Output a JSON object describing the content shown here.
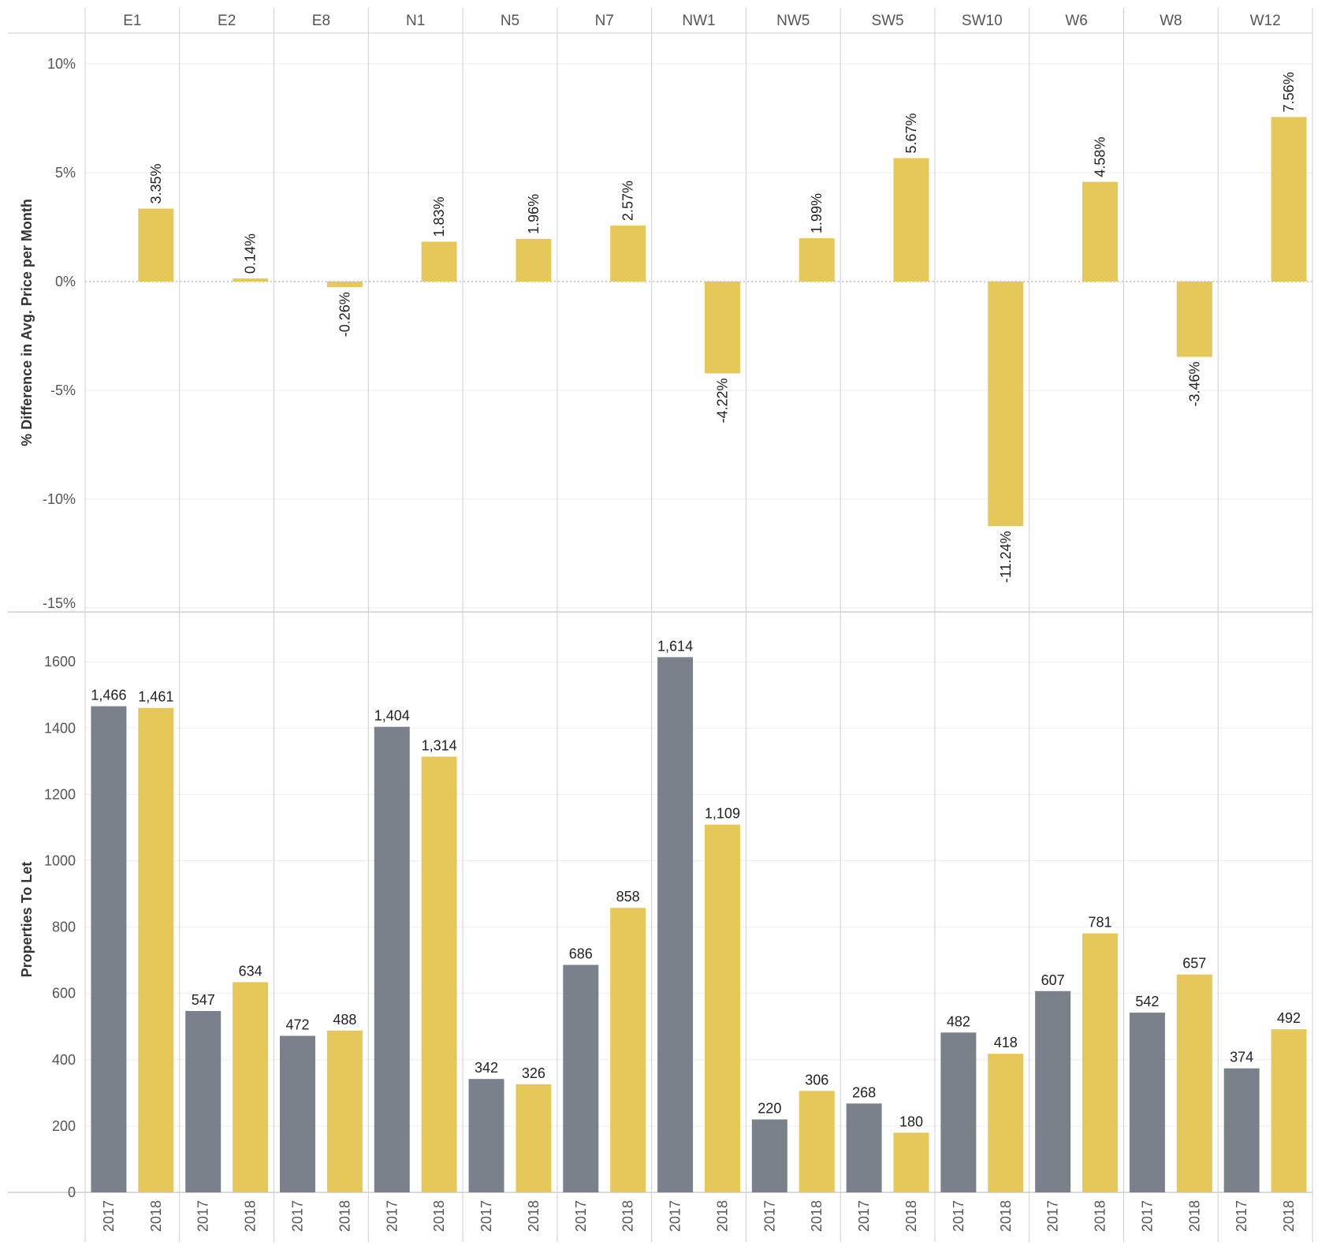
{
  "colors": {
    "year_2017": "#7b818b",
    "year_2018": "#e6c85a",
    "pct_bar": "#e6c85a",
    "divider": "#cfcfcf",
    "gridline": "#eeeeee"
  },
  "chart_data": [
    {
      "type": "bar",
      "title": "",
      "ylabel": "% Difference in Avg. Price per Month",
      "categories": [
        "E1",
        "E2",
        "E8",
        "N1",
        "N5",
        "N7",
        "NW1",
        "NW5",
        "SW5",
        "SW10",
        "W6",
        "W8",
        "W12"
      ],
      "values": [
        3.35,
        0.14,
        -0.26,
        1.83,
        1.96,
        2.57,
        -4.22,
        1.99,
        5.67,
        -11.24,
        4.58,
        -3.46,
        7.56
      ],
      "value_labels": [
        "3.35%",
        "0.14%",
        "-0.26%",
        "1.83%",
        "1.96%",
        "2.57%",
        "-4.22%",
        "1.99%",
        "5.67%",
        "-11.24%",
        "4.58%",
        "-3.46%",
        "7.56%"
      ],
      "y_ticks": [
        10,
        5,
        0,
        -5,
        -10,
        -15
      ],
      "y_tick_labels": [
        "10%",
        "5%",
        "0%",
        "-5%",
        "-10%",
        "-15%"
      ],
      "ylim": [
        -15,
        10
      ],
      "grid": true
    },
    {
      "type": "bar",
      "title": "",
      "ylabel": "Properties To Let",
      "categories": [
        "E1",
        "E2",
        "E8",
        "N1",
        "N5",
        "N7",
        "NW1",
        "NW5",
        "SW5",
        "SW10",
        "W6",
        "W8",
        "W12"
      ],
      "sub_categories": [
        "2017",
        "2018"
      ],
      "series": [
        {
          "values": [
            1466,
            547,
            472,
            1404,
            342,
            686,
            1614,
            220,
            268,
            482,
            607,
            542,
            374
          ],
          "labels": [
            "1,466",
            "547",
            "472",
            "1,404",
            "342",
            "686",
            "1,614",
            "220",
            "268",
            "482",
            "607",
            "542",
            "374"
          ]
        },
        {
          "values": [
            1461,
            634,
            488,
            1314,
            326,
            858,
            1109,
            306,
            180,
            418,
            781,
            657,
            492
          ],
          "labels": [
            "1,461",
            "634",
            "488",
            "1,314",
            "326",
            "858",
            "1,109",
            "306",
            "180",
            "418",
            "781",
            "657",
            "492"
          ]
        }
      ],
      "y_ticks": [
        1600,
        1400,
        1200,
        1000,
        800,
        600,
        400,
        200,
        0
      ],
      "y_tick_labels": [
        "1600",
        "1400",
        "1200",
        "1000",
        "800",
        "600",
        "400",
        "200",
        "0"
      ],
      "ylim": [
        0,
        1750
      ],
      "grid": true
    }
  ]
}
